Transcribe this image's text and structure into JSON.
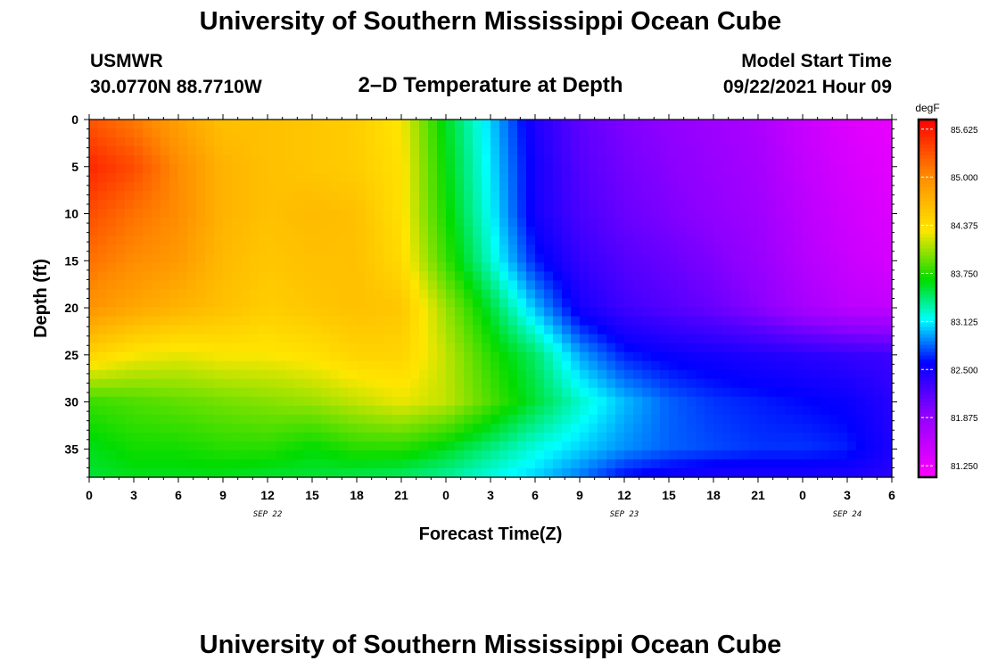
{
  "header": {
    "title": "University of Southern Mississippi Ocean Cube",
    "station": "USMWR",
    "coords": "30.0770N  88.7710W",
    "plot_title": "2–D Temperature at Depth",
    "model_label": "Model Start Time",
    "model_time": "09/22/2021 Hour 09",
    "footer_title": "University of Southern Mississippi Ocean Cube"
  },
  "chart_data": {
    "type": "heatmap",
    "title": "2–D Temperature at Depth",
    "xlabel": "Forecast Time(Z)",
    "ylabel": "Depth (ft)",
    "x_tick_labels": [
      "0",
      "3",
      "6",
      "9",
      "12",
      "15",
      "18",
      "21",
      "0",
      "3",
      "6",
      "9",
      "12",
      "15",
      "18",
      "21",
      "0",
      "3",
      "6"
    ],
    "x_range_hours": [
      0,
      54
    ],
    "date_labels": [
      {
        "label": "SEP 22",
        "hour": 12
      },
      {
        "label": "SEP 23",
        "hour": 36
      },
      {
        "label": "SEP 24",
        "hour": 51
      }
    ],
    "y_ticks": [
      0,
      5,
      10,
      15,
      20,
      25,
      30,
      35
    ],
    "ylim": [
      0,
      38
    ],
    "colorbar": {
      "unit": "degF",
      "ticks": [
        "85.625",
        "85.000",
        "84.375",
        "83.750",
        "83.125",
        "82.500",
        "81.875",
        "81.250"
      ],
      "min": 81.1,
      "max": 85.75
    },
    "grid_hours": [
      0,
      3,
      6,
      9,
      12,
      15,
      18,
      21,
      24,
      27,
      30,
      33,
      36,
      39,
      42,
      45,
      48,
      51,
      54
    ],
    "grid_depths": [
      0,
      5,
      10,
      15,
      20,
      25,
      30,
      35,
      38
    ],
    "temperature": [
      [
        85.3,
        85.1,
        84.85,
        84.6,
        84.6,
        84.55,
        84.5,
        84.3,
        83.6,
        83.05,
        82.45,
        82.15,
        82.0,
        81.9,
        81.8,
        81.7,
        81.5,
        81.35,
        81.25
      ],
      [
        85.55,
        85.35,
        85.0,
        84.7,
        84.6,
        84.55,
        84.5,
        84.35,
        83.65,
        83.1,
        82.5,
        82.2,
        82.05,
        81.95,
        81.85,
        81.75,
        81.55,
        81.4,
        81.3
      ],
      [
        85.35,
        85.15,
        85.0,
        84.7,
        84.6,
        84.65,
        84.6,
        84.35,
        83.7,
        83.15,
        82.5,
        82.25,
        82.1,
        82.0,
        81.9,
        81.8,
        81.6,
        81.45,
        81.35
      ],
      [
        85.15,
        85.0,
        84.9,
        84.65,
        84.55,
        84.6,
        84.6,
        84.4,
        83.8,
        83.25,
        82.65,
        82.35,
        82.2,
        82.1,
        82.0,
        81.85,
        81.65,
        81.5,
        81.4
      ],
      [
        84.95,
        84.8,
        84.7,
        84.6,
        84.5,
        84.55,
        84.6,
        84.55,
        84.05,
        83.55,
        83.0,
        82.5,
        82.3,
        82.2,
        82.1,
        81.95,
        81.75,
        81.6,
        81.55
      ],
      [
        84.45,
        84.3,
        84.25,
        84.3,
        84.3,
        84.35,
        84.45,
        84.45,
        84.15,
        83.75,
        83.45,
        82.95,
        82.65,
        82.55,
        82.5,
        82.45,
        82.4,
        82.35,
        82.3
      ],
      [
        83.8,
        83.85,
        83.9,
        83.95,
        84.0,
        84.05,
        84.15,
        84.25,
        84.15,
        83.85,
        83.55,
        83.25,
        83.0,
        82.8,
        82.7,
        82.65,
        82.6,
        82.55,
        82.4
      ],
      [
        83.6,
        83.7,
        83.7,
        83.75,
        83.75,
        83.65,
        83.75,
        83.75,
        83.6,
        83.4,
        83.2,
        83.05,
        82.9,
        82.8,
        82.75,
        82.7,
        82.7,
        82.65,
        82.45
      ],
      [
        83.55,
        83.6,
        83.6,
        83.6,
        83.55,
        83.55,
        83.5,
        83.45,
        83.35,
        83.2,
        83.05,
        82.85,
        82.6,
        82.5,
        82.45,
        82.45,
        82.45,
        82.45,
        82.4
      ]
    ]
  }
}
